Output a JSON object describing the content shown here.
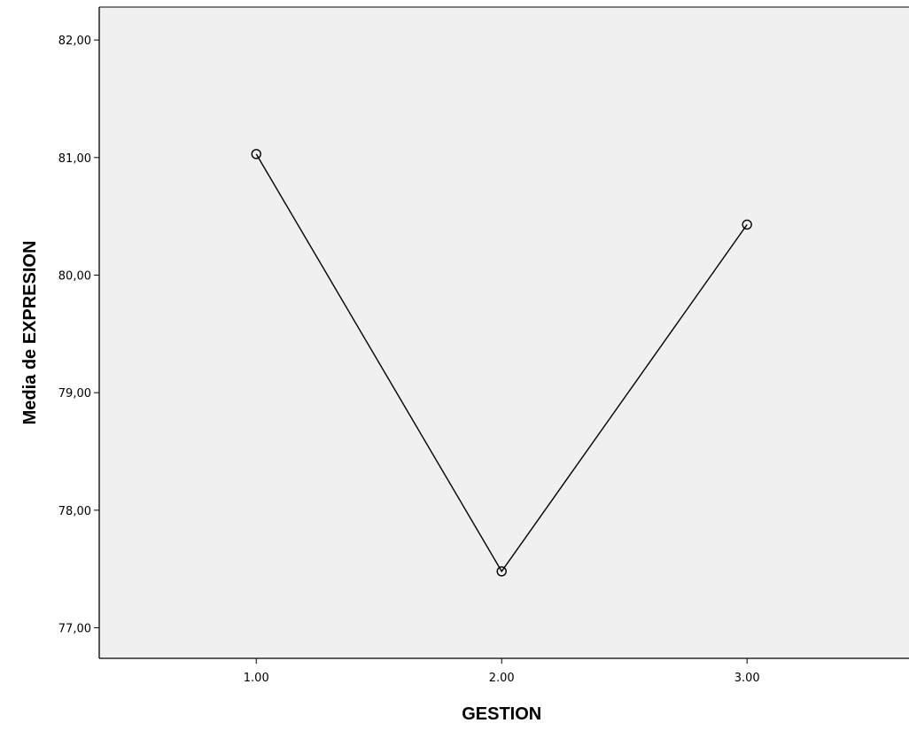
{
  "chart_data": {
    "type": "line",
    "title": "",
    "xlabel": "GESTION",
    "ylabel": "Media de EXPRESION",
    "categories": [
      "1.00",
      "2.00",
      "3.00"
    ],
    "x": [
      1.0,
      2.0,
      3.0
    ],
    "xlim": [
      0.36,
      3.66
    ],
    "ylim": [
      76.74,
      82.28
    ],
    "y_ticks": [
      77.0,
      78.0,
      79.0,
      80.0,
      81.0,
      82.0
    ],
    "y_tick_labels": [
      "77,00",
      "78,00",
      "79,00",
      "80,00",
      "81,00",
      "82,00"
    ],
    "series": [
      {
        "values": [
          81.03,
          77.48,
          80.43
        ]
      }
    ],
    "markers": "hollow-circle",
    "grid": false,
    "legend": "none",
    "colors": {
      "plot_background": "#f0f0f0",
      "line": "#000000",
      "axis": "#000000"
    }
  }
}
